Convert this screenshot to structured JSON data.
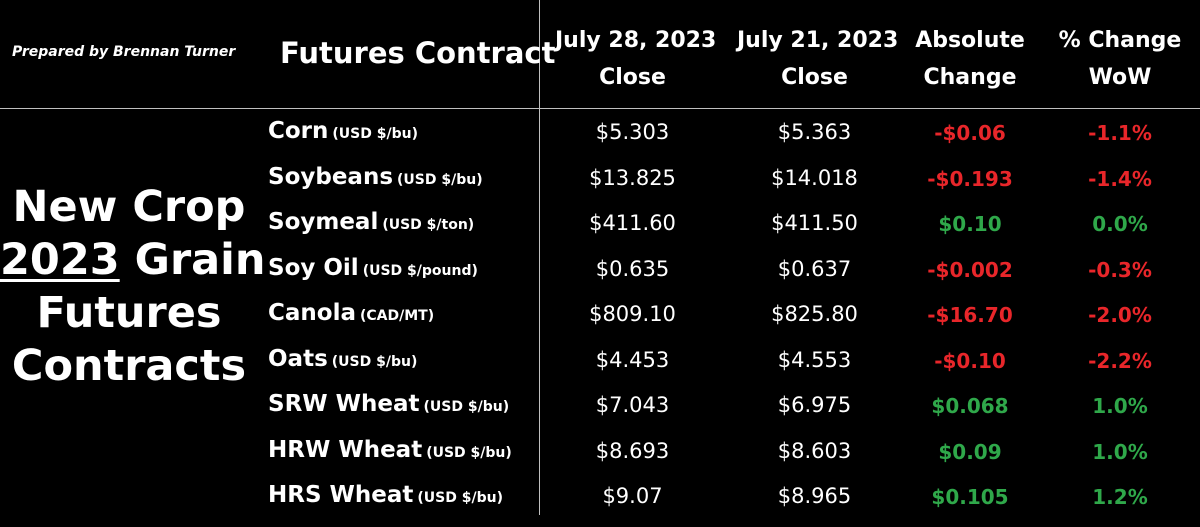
{
  "prepared_by": "Prepared by Brennan Turner",
  "headers": {
    "contract": "Futures Contract",
    "col1": [
      "July 28, 2023",
      "Close"
    ],
    "col2": [
      "July 21, 2023",
      "Close"
    ],
    "col3": [
      "Absolute",
      "Change"
    ],
    "col4": [
      "% Change",
      "WoW"
    ]
  },
  "side_title": {
    "line1": "New Crop",
    "year": "2023",
    "line2_rest": " Grain",
    "line3": "Futures",
    "line4": "Contracts"
  },
  "colors": {
    "negative": "#e8262a",
    "positive": "#2fa84a",
    "text": "#ffffff",
    "background": "#000000"
  },
  "chart_data": {
    "type": "table",
    "columns": [
      "Futures Contract",
      "July 28, 2023 Close",
      "July 21, 2023 Close",
      "Absolute Change",
      "% Change WoW"
    ],
    "rows": [
      {
        "name": "Corn",
        "unit": "(USD $/bu)",
        "close_0728": "$5.303",
        "close_0721": "$5.363",
        "abs_change": "-$0.06",
        "pct_change": "-1.1%",
        "direction": "negative"
      },
      {
        "name": "Soybeans",
        "unit": "(USD $/bu)",
        "close_0728": "$13.825",
        "close_0721": "$14.018",
        "abs_change": "-$0.193",
        "pct_change": "-1.4%",
        "direction": "negative"
      },
      {
        "name": "Soymeal",
        "unit": "(USD $/ton)",
        "close_0728": "$411.60",
        "close_0721": "$411.50",
        "abs_change": "$0.10",
        "pct_change": "0.0%",
        "direction": "positive"
      },
      {
        "name": "Soy Oil",
        "unit": "(USD $/pound)",
        "close_0728": "$0.635",
        "close_0721": "$0.637",
        "abs_change": "-$0.002",
        "pct_change": "-0.3%",
        "direction": "negative"
      },
      {
        "name": "Canola",
        "unit": "(CAD/MT)",
        "close_0728": "$809.10",
        "close_0721": "$825.80",
        "abs_change": "-$16.70",
        "pct_change": "-2.0%",
        "direction": "negative"
      },
      {
        "name": "Oats",
        "unit": "(USD $/bu)",
        "close_0728": "$4.453",
        "close_0721": "$4.553",
        "abs_change": "-$0.10",
        "pct_change": "-2.2%",
        "direction": "negative"
      },
      {
        "name": "SRW Wheat",
        "unit": "(USD $/bu)",
        "close_0728": "$7.043",
        "close_0721": "$6.975",
        "abs_change": "$0.068",
        "pct_change": "1.0%",
        "direction": "positive"
      },
      {
        "name": "HRW Wheat",
        "unit": "(USD $/bu)",
        "close_0728": "$8.693",
        "close_0721": "$8.603",
        "abs_change": "$0.09",
        "pct_change": "1.0%",
        "direction": "positive"
      },
      {
        "name": "HRS Wheat",
        "unit": "(USD $/bu)",
        "close_0728": "$9.07",
        "close_0721": "$8.965",
        "abs_change": "$0.105",
        "pct_change": "1.2%",
        "direction": "positive"
      }
    ]
  }
}
